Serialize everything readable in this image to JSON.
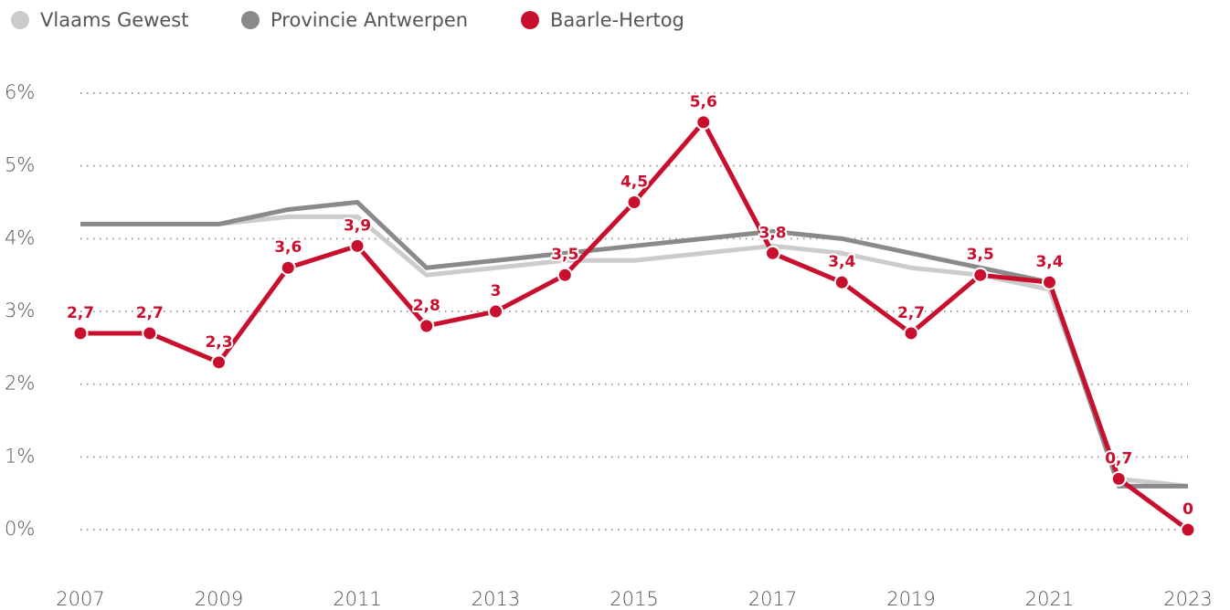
{
  "chart_data": {
    "type": "line",
    "x": [
      2007,
      2008,
      2009,
      2010,
      2011,
      2012,
      2013,
      2014,
      2015,
      2016,
      2017,
      2018,
      2019,
      2020,
      2021,
      2022,
      2023
    ],
    "xlim": [
      2007,
      2023
    ],
    "xticks": [
      2007,
      2009,
      2011,
      2013,
      2015,
      2017,
      2019,
      2021,
      2023
    ],
    "ylim": [
      -0.5,
      6.2
    ],
    "yticks": [
      {
        "value": 0,
        "label": "0%"
      },
      {
        "value": 1,
        "label": "1%"
      },
      {
        "value": 2,
        "label": "2%"
      },
      {
        "value": 3,
        "label": "3%"
      },
      {
        "value": 4,
        "label": "4%"
      },
      {
        "value": 5,
        "label": "5%"
      },
      {
        "value": 6,
        "label": "6%"
      }
    ],
    "grid": true,
    "legend": "top-left",
    "series": [
      {
        "name": "Vlaams Gewest",
        "color": "#cccccc",
        "values": [
          4.2,
          4.2,
          4.2,
          4.3,
          4.3,
          3.5,
          3.6,
          3.7,
          3.7,
          3.8,
          3.9,
          3.8,
          3.6,
          3.5,
          3.3,
          0.7,
          0.6
        ]
      },
      {
        "name": "Provincie Antwerpen",
        "color": "#8a8a8c",
        "values": [
          4.2,
          4.2,
          4.2,
          4.4,
          4.5,
          3.6,
          3.7,
          3.8,
          3.9,
          4.0,
          4.1,
          4.0,
          3.8,
          3.6,
          3.4,
          0.6,
          0.6
        ]
      },
      {
        "name": "Baarle-Hertog",
        "color": "#c8102e",
        "markers": true,
        "values": [
          2.7,
          2.7,
          2.3,
          3.6,
          3.9,
          2.8,
          3,
          3.5,
          4.5,
          5.6,
          3.8,
          3.4,
          2.7,
          3.5,
          3.4,
          0.7,
          0
        ],
        "value_labels": [
          "2,7",
          "2,7",
          "2,3",
          "3,6",
          "3,9",
          "2,8",
          "3",
          "3,5",
          "4,5",
          "5,6",
          "3,8",
          "3,4",
          "2,7",
          "3,5",
          "3,4",
          "0,7",
          "0"
        ]
      }
    ]
  }
}
